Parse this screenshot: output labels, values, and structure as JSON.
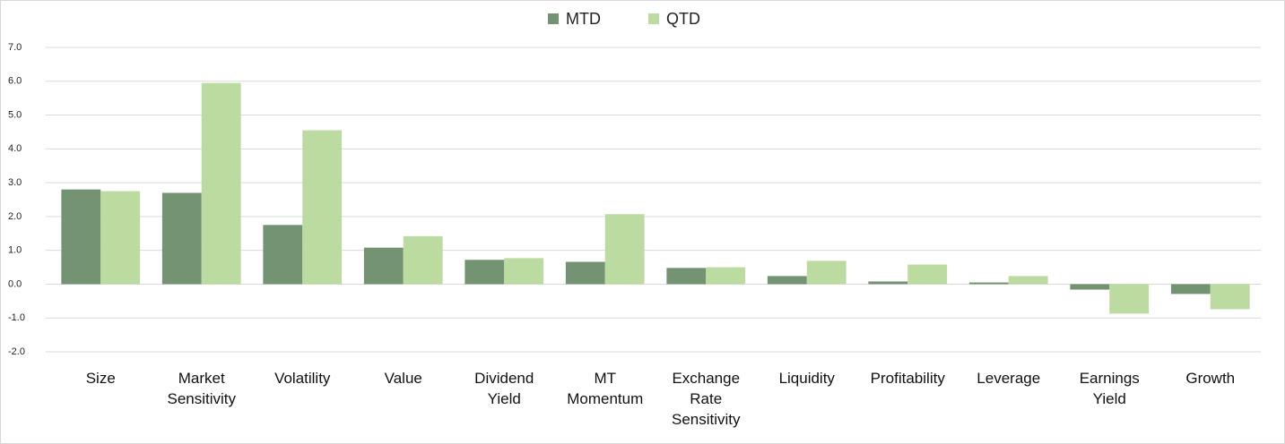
{
  "chart_data": {
    "type": "bar",
    "categories": [
      "Size",
      "Market Sensitivity",
      "Volatility",
      "Value",
      "Dividend Yield",
      "MT Momentum",
      "Exchange Rate Sensitivity",
      "Liquidity",
      "Profitability",
      "Leverage",
      "Earnings Yield",
      "Growth"
    ],
    "series": [
      {
        "name": "MTD",
        "color": "#739373",
        "values": [
          2.8,
          2.7,
          1.75,
          1.08,
          0.72,
          0.66,
          0.48,
          0.24,
          0.08,
          0.05,
          -0.16,
          -0.29
        ]
      },
      {
        "name": "QTD",
        "color": "#bcdba0",
        "values": [
          2.75,
          5.95,
          4.55,
          1.42,
          0.77,
          2.07,
          0.5,
          0.69,
          0.58,
          0.24,
          -0.87,
          -0.74
        ]
      }
    ],
    "ylim": [
      -2,
      7
    ],
    "yticks": [
      {
        "value": -2,
        "label": "-2.0"
      },
      {
        "value": -1,
        "label": "-1.0"
      },
      {
        "value": 0,
        "label": "0.0"
      },
      {
        "value": 1,
        "label": "1.0"
      },
      {
        "value": 2,
        "label": "2.0"
      },
      {
        "value": 3,
        "label": "3.0"
      },
      {
        "value": 4,
        "label": "4.0"
      },
      {
        "value": 5,
        "label": "5.0"
      },
      {
        "value": 6,
        "label": "6.0"
      },
      {
        "value": 7,
        "label": "7.0"
      }
    ],
    "grid": true,
    "legend": "top"
  }
}
